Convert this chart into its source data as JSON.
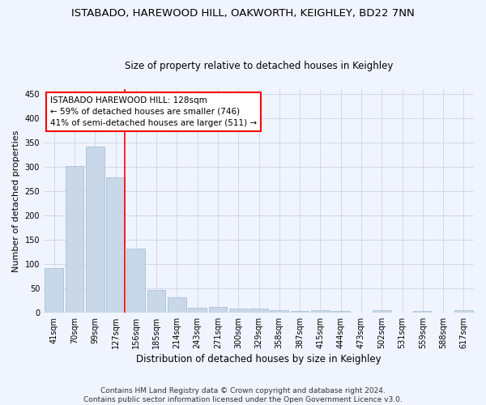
{
  "title1": "ISTABADO, HAREWOOD HILL, OAKWORTH, KEIGHLEY, BD22 7NN",
  "title2": "Size of property relative to detached houses in Keighley",
  "xlabel": "Distribution of detached houses by size in Keighley",
  "ylabel": "Number of detached properties",
  "footer": "Contains HM Land Registry data © Crown copyright and database right 2024.\nContains public sector information licensed under the Open Government Licence v3.0.",
  "bar_labels": [
    "41sqm",
    "70sqm",
    "99sqm",
    "127sqm",
    "156sqm",
    "185sqm",
    "214sqm",
    "243sqm",
    "271sqm",
    "300sqm",
    "329sqm",
    "358sqm",
    "387sqm",
    "415sqm",
    "444sqm",
    "473sqm",
    "502sqm",
    "531sqm",
    "559sqm",
    "588sqm",
    "617sqm"
  ],
  "bar_values": [
    91,
    302,
    342,
    278,
    131,
    47,
    32,
    9,
    12,
    8,
    8,
    4,
    3,
    4,
    3,
    0,
    4,
    0,
    3,
    0,
    4
  ],
  "bar_color": "#c8d8e8",
  "bar_edge_color": "#a0b8d0",
  "grid_color": "#d0d8e8",
  "annotation_text": "ISTABADO HAREWOOD HILL: 128sqm\n← 59% of detached houses are smaller (746)\n41% of semi-detached houses are larger (511) →",
  "annotation_box_color": "white",
  "annotation_box_edge": "red",
  "vline_x_index": 3,
  "vline_color": "red",
  "ylim": [
    0,
    460
  ],
  "yticks": [
    0,
    50,
    100,
    150,
    200,
    250,
    300,
    350,
    400,
    450
  ],
  "background_color": "#f0f4ff",
  "title1_fontsize": 9.5,
  "title2_fontsize": 8.5,
  "xlabel_fontsize": 8.5,
  "ylabel_fontsize": 8,
  "tick_fontsize": 7,
  "annotation_fontsize": 7.5,
  "footer_fontsize": 6.5
}
